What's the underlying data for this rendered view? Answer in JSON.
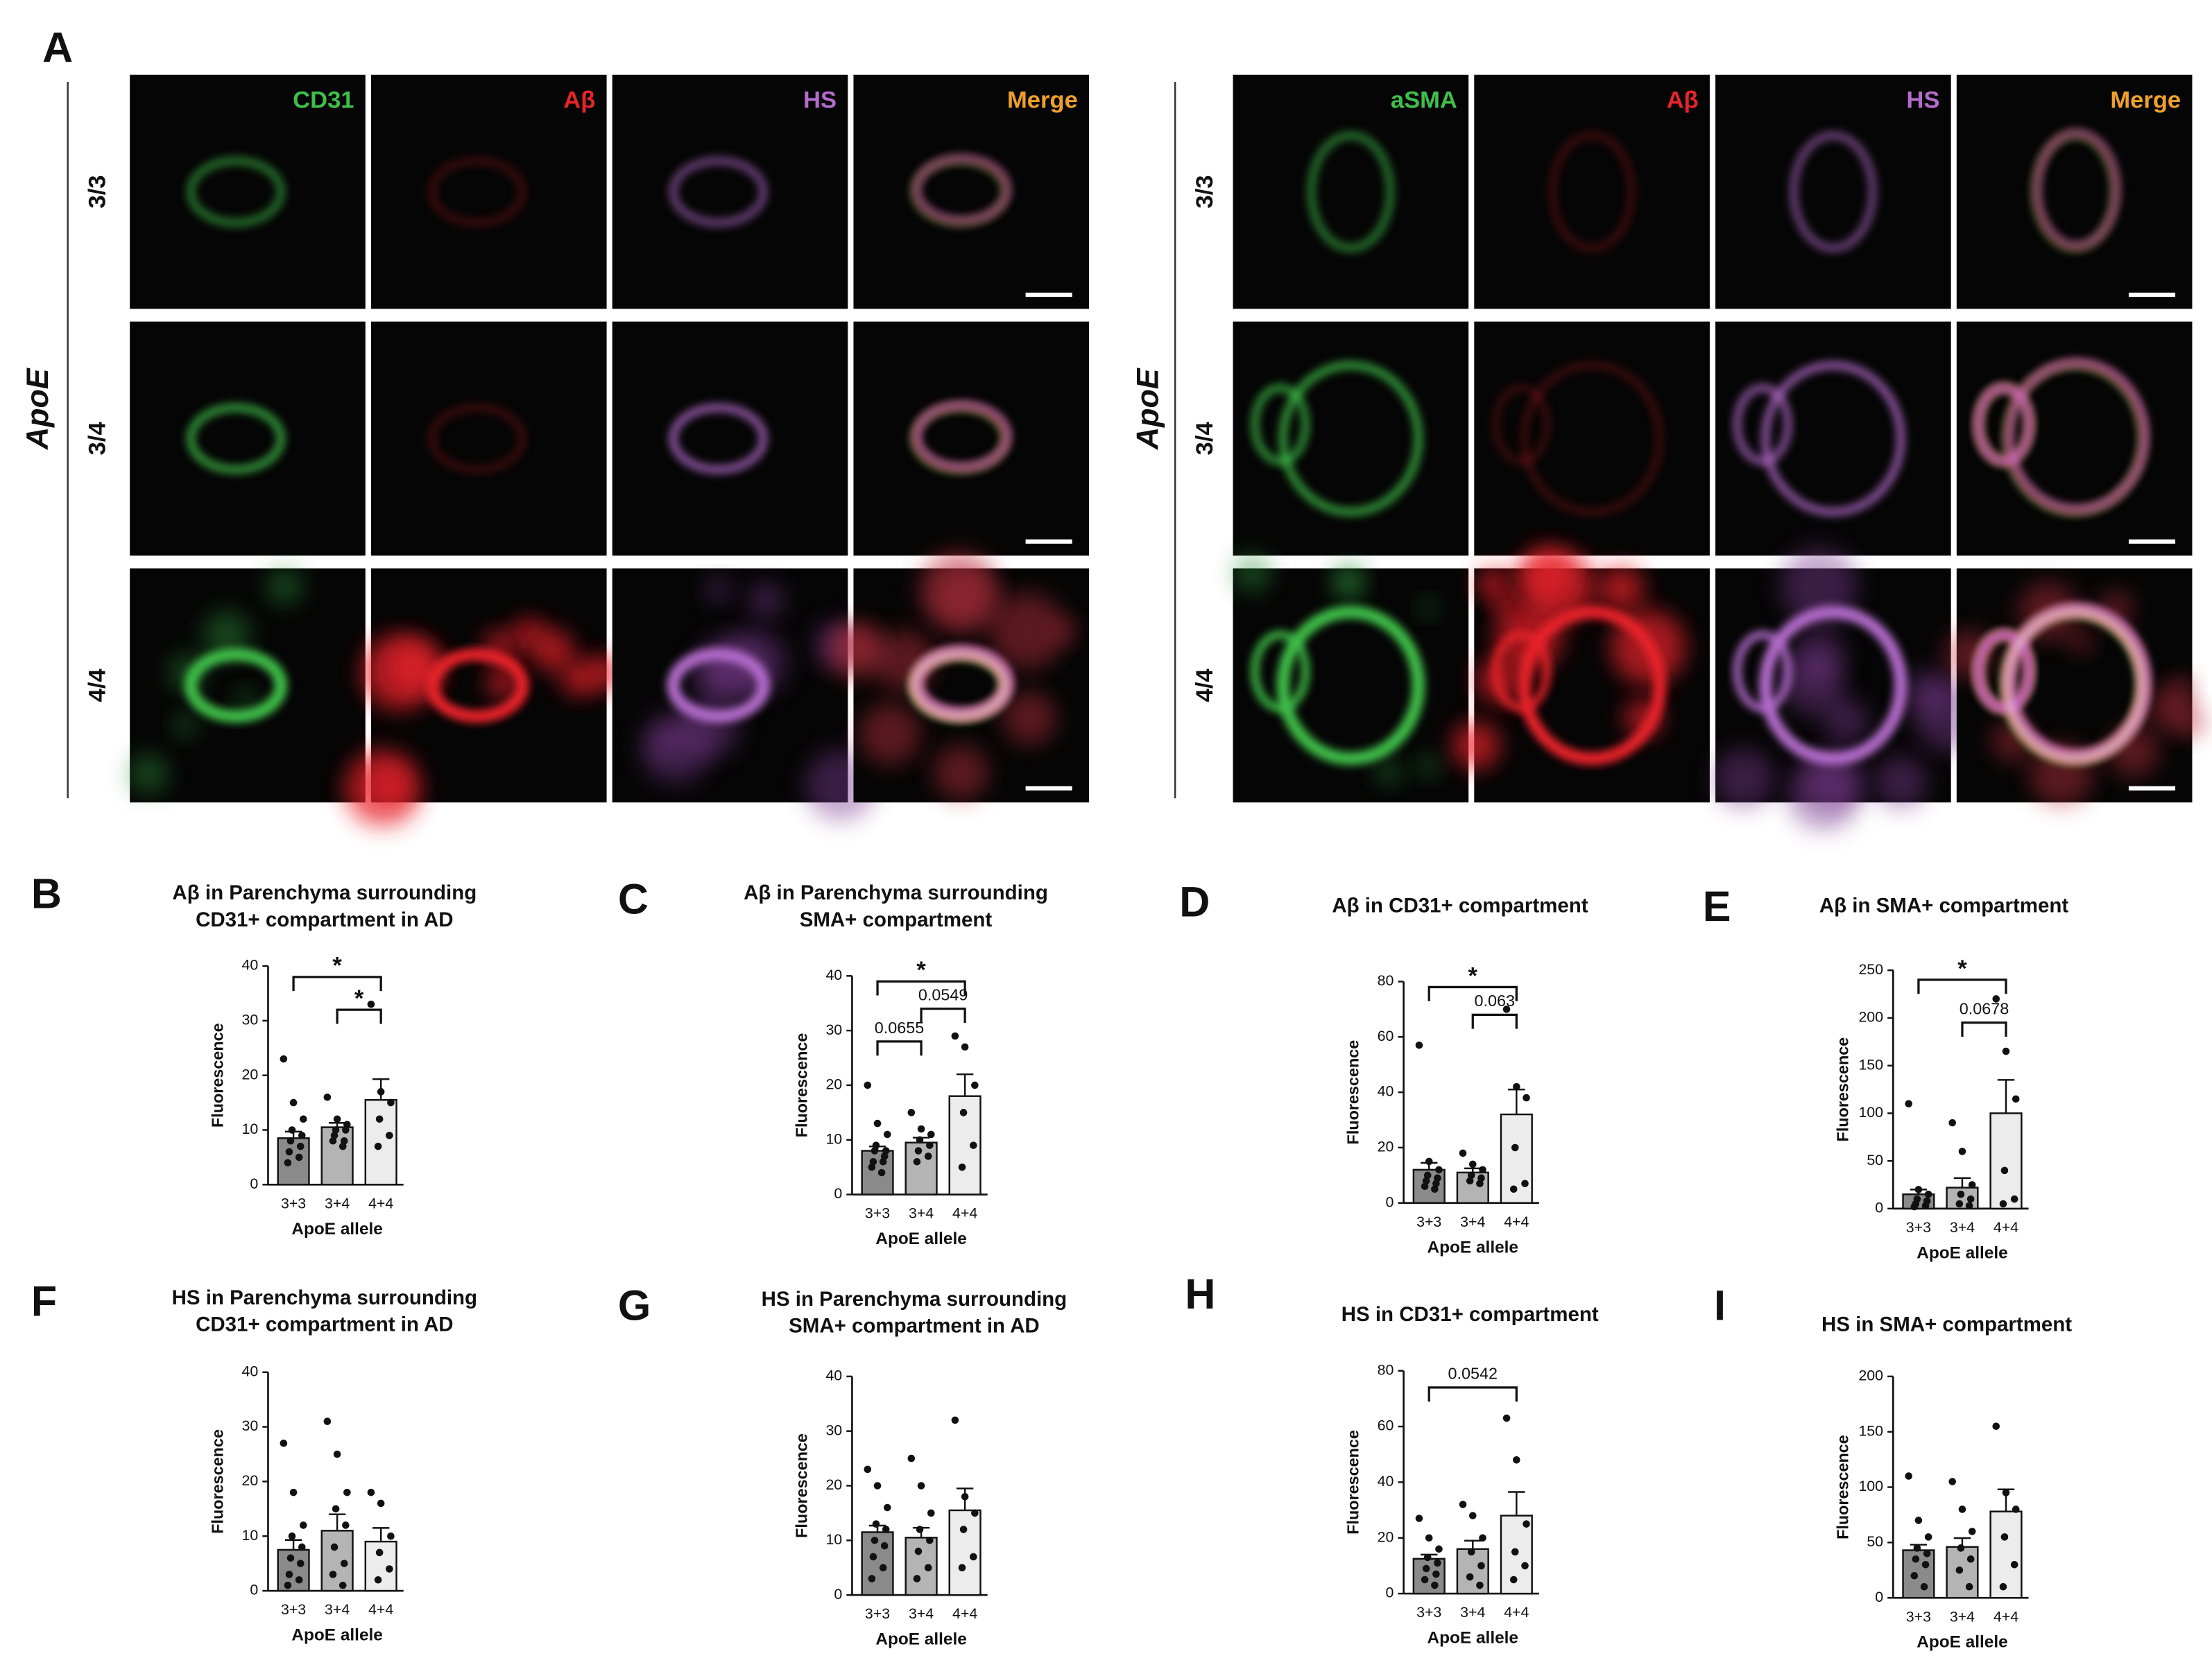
{
  "panel_a": {
    "label": "A",
    "groups": [
      {
        "side_label": "ApoE",
        "rows": [
          "3/3",
          "3/4",
          "4/4"
        ],
        "channels": [
          "CD31",
          "Aβ",
          "HS",
          "Merge"
        ]
      },
      {
        "side_label": "ApoE",
        "rows": [
          "3/3",
          "3/4",
          "4/4"
        ],
        "channels": [
          "aSMA",
          "Aβ",
          "HS",
          "Merge"
        ]
      }
    ],
    "channel_colors": [
      "#3fbf4a",
      "#e8242a",
      "#b46ccc",
      "#f0a02a"
    ]
  },
  "chart_data": [
    {
      "type": "bar",
      "label": "B",
      "title": [
        "Aβ in Parenchyma surrounding",
        "CD31+ compartment in AD"
      ],
      "ylabel": "Fluorescence",
      "xlabel": "ApoE allele",
      "categories": [
        "3+3",
        "3+4",
        "4+4"
      ],
      "values": [
        8.5,
        10.5,
        15.5
      ],
      "errors": [
        1.2,
        0.8,
        3.8
      ],
      "colors": [
        "#8a8a8a",
        "#b4b4b4",
        "#ececec"
      ],
      "points": [
        [
          23,
          15,
          12,
          10,
          9,
          8,
          7,
          6,
          5,
          4
        ],
        [
          16,
          12,
          11,
          10,
          10,
          9,
          8,
          8,
          7
        ],
        [
          33,
          17,
          15,
          12,
          9,
          7
        ]
      ],
      "ylim": [
        0,
        40
      ],
      "yticks": [
        0,
        10,
        20,
        30,
        40
      ],
      "significance": [
        {
          "x": [
            "3+3",
            "4+4"
          ],
          "y": 38,
          "label": "*"
        },
        {
          "x": [
            "3+4",
            "4+4"
          ],
          "y": 32,
          "label": "*"
        }
      ]
    },
    {
      "type": "bar",
      "label": "C",
      "title": [
        "Aβ in Parenchyma surrounding",
        "SMA+ compartment"
      ],
      "ylabel": "Fluorescence",
      "xlabel": "ApoE allele",
      "categories": [
        "3+3",
        "3+4",
        "4+4"
      ],
      "values": [
        8,
        9.5,
        18
      ],
      "errors": [
        0.8,
        0.9,
        4
      ],
      "colors": [
        "#8a8a8a",
        "#b4b4b4",
        "#ececec"
      ],
      "points": [
        [
          20,
          13,
          11,
          9,
          8,
          8,
          7,
          6,
          6,
          5,
          4
        ],
        [
          15,
          12,
          11,
          10,
          9,
          8,
          7,
          6
        ],
        [
          29,
          27,
          20,
          15,
          9,
          5
        ]
      ],
      "ylim": [
        0,
        40
      ],
      "yticks": [
        0,
        10,
        20,
        30,
        40
      ],
      "significance": [
        {
          "x": [
            "3+3",
            "4+4"
          ],
          "y": 39,
          "label": "*"
        },
        {
          "x": [
            "3+4",
            "4+4"
          ],
          "y": 34,
          "label": "0.0549"
        },
        {
          "x": [
            "3+3",
            "3+4"
          ],
          "y": 28,
          "label": "0.0655"
        }
      ]
    },
    {
      "type": "bar",
      "label": "D",
      "title": [
        "Aβ in CD31+ compartment"
      ],
      "ylabel": "Fluorescence",
      "xlabel": "ApoE allele",
      "categories": [
        "3+3",
        "3+4",
        "4+4"
      ],
      "values": [
        12,
        11,
        32
      ],
      "errors": [
        2.5,
        1.5,
        9
      ],
      "colors": [
        "#8a8a8a",
        "#b4b4b4",
        "#ececec"
      ],
      "points": [
        [
          57,
          15,
          12,
          10,
          9,
          8,
          7,
          6,
          5
        ],
        [
          18,
          14,
          12,
          10,
          9,
          8,
          7
        ],
        [
          70,
          42,
          38,
          20,
          7,
          5
        ]
      ],
      "ylim": [
        0,
        80
      ],
      "yticks": [
        0,
        20,
        40,
        60,
        80
      ],
      "significance": [
        {
          "x": [
            "3+3",
            "4+4"
          ],
          "y": 78,
          "label": "*"
        },
        {
          "x": [
            "3+4",
            "4+4"
          ],
          "y": 68,
          "label": "0.063"
        }
      ]
    },
    {
      "type": "bar",
      "label": "E",
      "title": [
        "Aβ in SMA+ compartment"
      ],
      "ylabel": "Fluorescence",
      "xlabel": "ApoE allele",
      "categories": [
        "3+3",
        "3+4",
        "4+4"
      ],
      "values": [
        15,
        22,
        100
      ],
      "errors": [
        5,
        10,
        35
      ],
      "colors": [
        "#8a8a8a",
        "#b4b4b4",
        "#ececec"
      ],
      "points": [
        [
          110,
          20,
          15,
          10,
          8,
          5,
          3,
          2
        ],
        [
          90,
          60,
          25,
          15,
          10,
          5,
          3
        ],
        [
          220,
          165,
          115,
          40,
          10,
          5
        ]
      ],
      "ylim": [
        0,
        250
      ],
      "yticks": [
        0,
        50,
        100,
        150,
        200,
        250
      ],
      "significance": [
        {
          "x": [
            "3+3",
            "4+4"
          ],
          "y": 240,
          "label": "*"
        },
        {
          "x": [
            "3+4",
            "4+4"
          ],
          "y": 195,
          "label": "0.0678"
        }
      ]
    },
    {
      "type": "bar",
      "label": "F",
      "title": [
        "HS in Parenchyma surrounding",
        "CD31+ compartment in AD"
      ],
      "ylabel": "Fluorescence",
      "xlabel": "ApoE allele",
      "categories": [
        "3+3",
        "3+4",
        "4+4"
      ],
      "values": [
        7.5,
        11,
        9
      ],
      "errors": [
        1.8,
        3,
        2.5
      ],
      "colors": [
        "#8a8a8a",
        "#b4b4b4",
        "#ececec"
      ],
      "points": [
        [
          27,
          18,
          12,
          10,
          8,
          6,
          5,
          3,
          2,
          1
        ],
        [
          31,
          25,
          18,
          15,
          12,
          8,
          5,
          3,
          1
        ],
        [
          18,
          16,
          10,
          7,
          4,
          2
        ]
      ],
      "ylim": [
        0,
        40
      ],
      "yticks": [
        0,
        10,
        20,
        30,
        40
      ],
      "significance": []
    },
    {
      "type": "bar",
      "label": "G",
      "title": [
        "HS  in Parenchyma surrounding",
        "SMA+ compartment in AD"
      ],
      "ylabel": "Fluorescence",
      "xlabel": "ApoE allele",
      "categories": [
        "3+3",
        "3+4",
        "4+4"
      ],
      "values": [
        11.5,
        10.5,
        15.5
      ],
      "errors": [
        1.2,
        1.8,
        4
      ],
      "colors": [
        "#8a8a8a",
        "#b4b4b4",
        "#ececec"
      ],
      "points": [
        [
          23,
          20,
          16,
          13,
          12,
          10,
          9,
          7,
          5,
          3
        ],
        [
          25,
          20,
          15,
          12,
          10,
          8,
          5,
          3
        ],
        [
          32,
          18,
          15,
          12,
          7,
          5
        ]
      ],
      "ylim": [
        0,
        40
      ],
      "yticks": [
        0,
        10,
        20,
        30,
        40
      ],
      "significance": []
    },
    {
      "type": "bar",
      "label": "H",
      "title": [
        "HS  in CD31+ compartment"
      ],
      "ylabel": "Fluorescence",
      "xlabel": "ApoE allele",
      "categories": [
        "3+3",
        "3+4",
        "4+4"
      ],
      "values": [
        12.5,
        16,
        28
      ],
      "errors": [
        1.5,
        3,
        8.5
      ],
      "colors": [
        "#8a8a8a",
        "#b4b4b4",
        "#ececec"
      ],
      "points": [
        [
          27,
          20,
          16,
          13,
          11,
          9,
          7,
          5,
          3
        ],
        [
          32,
          28,
          20,
          15,
          10,
          6,
          3
        ],
        [
          63,
          48,
          25,
          15,
          10,
          5
        ]
      ],
      "ylim": [
        0,
        80
      ],
      "yticks": [
        0,
        20,
        40,
        60,
        80
      ],
      "significance": [
        {
          "x": [
            "3+3",
            "4+4"
          ],
          "y": 74,
          "label": "0.0542"
        }
      ]
    },
    {
      "type": "bar",
      "label": "I",
      "title": [
        "HS in SMA+ compartment"
      ],
      "ylabel": "Fluorescence",
      "xlabel": "ApoE allele",
      "categories": [
        "3+3",
        "3+4",
        "4+4"
      ],
      "values": [
        43,
        46,
        78
      ],
      "errors": [
        5,
        8,
        20
      ],
      "colors": [
        "#8a8a8a",
        "#b4b4b4",
        "#ececec"
      ],
      "points": [
        [
          110,
          70,
          55,
          45,
          40,
          35,
          30,
          20,
          10
        ],
        [
          105,
          80,
          60,
          45,
          35,
          25,
          10
        ],
        [
          155,
          95,
          80,
          55,
          30,
          10
        ]
      ],
      "ylim": [
        0,
        200
      ],
      "yticks": [
        0,
        50,
        100,
        150,
        200
      ],
      "significance": []
    }
  ]
}
